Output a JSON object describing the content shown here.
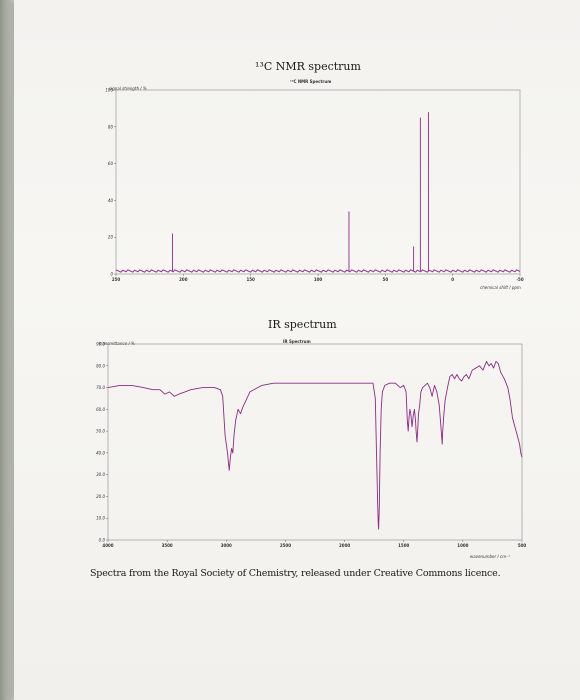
{
  "page": {
    "caption": "Spectra from the Royal Society of Chemistry, released under Creative Commons licence."
  },
  "chart_data": [
    {
      "type": "line",
      "title": "¹³C NMR spectrum",
      "subtitle": "¹³C NMR Spectrum",
      "ylabel": "signal strength / %",
      "xlabel": "chemical shift / ppm",
      "xlim": [
        250,
        -50
      ],
      "ylim": [
        0,
        100
      ],
      "x_ticks": [
        250,
        200,
        150,
        100,
        50,
        0,
        -50
      ],
      "x_tick_labels": [
        "250",
        "200",
        "150",
        "100",
        "50",
        "0",
        "-50"
      ],
      "y_ticks": [
        0,
        20,
        40,
        60,
        80,
        100
      ],
      "y_tick_labels": [
        "0",
        "20",
        "40",
        "60",
        "80",
        "100"
      ],
      "line_color": "#8a2c82",
      "peaks": [
        {
          "x": 208,
          "y": 22
        },
        {
          "x": 77,
          "y": 34
        },
        {
          "x": 29,
          "y": 15
        },
        {
          "x": 24,
          "y": 85
        },
        {
          "x": 18,
          "y": 88
        }
      ]
    },
    {
      "type": "line",
      "title": "IR spectrum",
      "subtitle": "IR Spectrum",
      "ylabel": "transmittance / %",
      "xlabel": "wavenumber / cm⁻¹",
      "xlim": [
        4000,
        500
      ],
      "ylim": [
        0,
        90
      ],
      "x_ticks": [
        4000,
        3500,
        3000,
        2500,
        2000,
        1500,
        1000,
        500
      ],
      "x_tick_labels": [
        "4000",
        "3500",
        "3000",
        "2500",
        "2000",
        "1500",
        "1000",
        "500"
      ],
      "y_ticks": [
        0,
        10,
        20,
        30,
        40,
        50,
        60,
        70,
        80,
        90
      ],
      "y_tick_labels": [
        "0.0",
        "10.0",
        "20.0",
        "30.0",
        "40.0",
        "50.0",
        "60.0",
        "70.0",
        "80.0",
        "90.0"
      ],
      "line_color": "#8a2c82",
      "series": [
        {
          "x": [
            4000,
            3900,
            3800,
            3700,
            3620,
            3560,
            3520,
            3480,
            3440,
            3400,
            3350,
            3300,
            3200,
            3100,
            3050,
            3030,
            3010,
            2990,
            2975,
            2965,
            2955,
            2945,
            2935,
            2920,
            2900,
            2880,
            2860,
            2800,
            2700,
            2600,
            2500,
            2400,
            2300,
            2200,
            2100,
            2000,
            1900,
            1800,
            1760,
            1740,
            1730,
            1722,
            1716,
            1712,
            1706,
            1700,
            1690,
            1680,
            1660,
            1620,
            1570,
            1530,
            1500,
            1480,
            1470,
            1462,
            1455,
            1448,
            1440,
            1430,
            1420,
            1410,
            1400,
            1395,
            1388,
            1380,
            1375,
            1365,
            1355,
            1340,
            1320,
            1300,
            1280,
            1260,
            1240,
            1220,
            1200,
            1190,
            1180,
            1175,
            1170,
            1160,
            1150,
            1130,
            1110,
            1090,
            1070,
            1050,
            1030,
            1010,
            990,
            970,
            950,
            920,
            890,
            860,
            830,
            800,
            780,
            760,
            740,
            720,
            700,
            680,
            650,
            620,
            600,
            580,
            560,
            540,
            520,
            510,
            500
          ],
          "y": [
            70,
            71,
            71,
            70,
            69,
            69,
            67,
            68,
            66,
            67,
            68,
            69,
            70,
            70,
            69,
            66,
            48,
            40,
            32,
            38,
            42,
            40,
            48,
            55,
            60,
            58,
            61,
            68,
            71,
            72,
            72,
            72,
            72,
            72,
            72,
            72,
            72,
            72,
            72,
            65,
            40,
            20,
            8,
            5,
            15,
            40,
            60,
            68,
            71,
            72,
            72,
            70,
            71,
            68,
            55,
            50,
            56,
            60,
            58,
            52,
            57,
            60,
            55,
            50,
            45,
            52,
            58,
            62,
            68,
            70,
            71,
            72,
            70,
            66,
            71,
            68,
            62,
            55,
            48,
            44,
            50,
            58,
            64,
            70,
            75,
            76,
            74,
            76,
            74,
            73,
            75,
            76,
            74,
            78,
            79,
            80,
            78,
            82,
            80,
            81,
            79,
            82,
            81,
            77,
            74,
            70,
            64,
            56,
            52,
            48,
            44,
            40,
            38
          ]
        }
      ]
    }
  ]
}
